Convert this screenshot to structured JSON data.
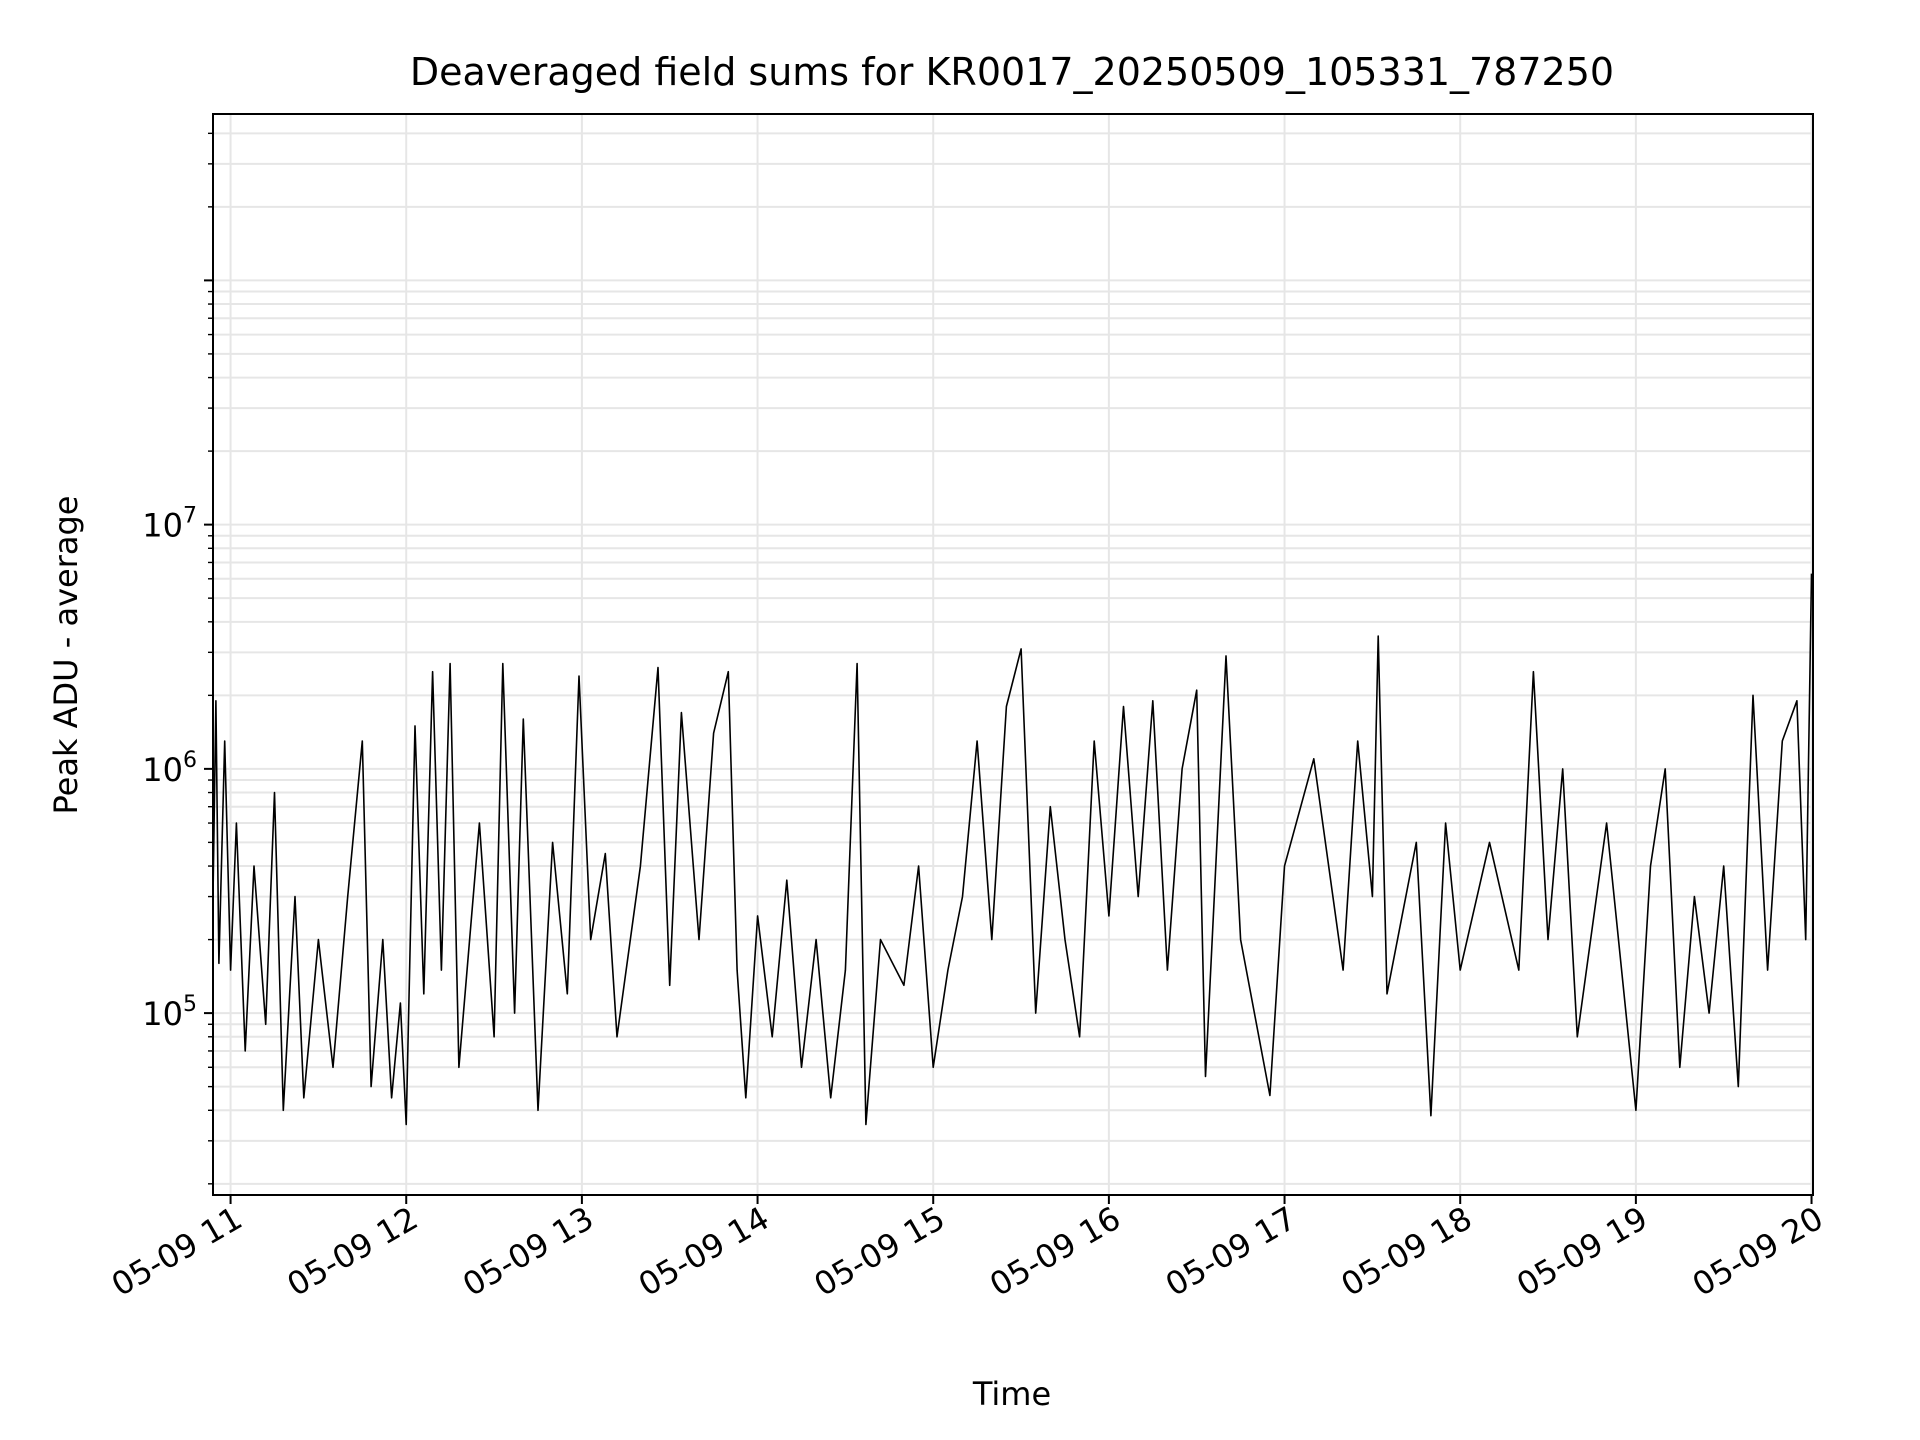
{
  "chart_data": {
    "type": "line",
    "title": "Deaveraged field sums for KR0017_20250509_105331_787250",
    "xlabel": "Time",
    "ylabel": "Peak ADU - average",
    "x_range": [
      "2025-05-09T10:54:00",
      "2025-05-09T20:00:30"
    ],
    "x_ticks": [
      {
        "time": "2025-05-09T11:00",
        "label": "05-09 11"
      },
      {
        "time": "2025-05-09T12:00",
        "label": "05-09 12"
      },
      {
        "time": "2025-05-09T13:00",
        "label": "05-09 13"
      },
      {
        "time": "2025-05-09T14:00",
        "label": "05-09 14"
      },
      {
        "time": "2025-05-09T15:00",
        "label": "05-09 15"
      },
      {
        "time": "2025-05-09T16:00",
        "label": "05-09 16"
      },
      {
        "time": "2025-05-09T17:00",
        "label": "05-09 17"
      },
      {
        "time": "2025-05-09T18:00",
        "label": "05-09 18"
      },
      {
        "time": "2025-05-09T19:00",
        "label": "05-09 19"
      },
      {
        "time": "2025-05-09T20:00",
        "label": "05-09 20"
      }
    ],
    "y_scale": "log",
    "ylim": [
      18000,
      480000000
    ],
    "y_ticks": [
      {
        "value": 100000,
        "base": "10",
        "exp": "5"
      },
      {
        "value": 1000000,
        "base": "10",
        "exp": "6"
      },
      {
        "value": 10000000,
        "base": "10",
        "exp": "7"
      }
    ],
    "grid": true,
    "line_color": "#000000",
    "grid_color": "#e6e6e6",
    "series": [
      {
        "points": [
          [
            "2025-05-09T10:54",
            300000
          ],
          [
            "2025-05-09T10:55",
            1900000
          ],
          [
            "2025-05-09T10:56",
            160000
          ],
          [
            "2025-05-09T10:58",
            1300000
          ],
          [
            "2025-05-09T11:00",
            150000
          ],
          [
            "2025-05-09T11:02",
            600000
          ],
          [
            "2025-05-09T11:05",
            70000
          ],
          [
            "2025-05-09T11:08",
            400000
          ],
          [
            "2025-05-09T11:12",
            90000
          ],
          [
            "2025-05-09T11:15",
            800000
          ],
          [
            "2025-05-09T11:18",
            40000
          ],
          [
            "2025-05-09T11:22",
            300000
          ],
          [
            "2025-05-09T11:25",
            45000
          ],
          [
            "2025-05-09T11:30",
            200000
          ],
          [
            "2025-05-09T11:35",
            60000
          ],
          [
            "2025-05-09T11:40",
            300000
          ],
          [
            "2025-05-09T11:45",
            1300000
          ],
          [
            "2025-05-09T11:48",
            50000
          ],
          [
            "2025-05-09T11:52",
            200000
          ],
          [
            "2025-05-09T11:55",
            45000
          ],
          [
            "2025-05-09T11:58",
            110000
          ],
          [
            "2025-05-09T12:00",
            35000
          ],
          [
            "2025-05-09T12:03",
            1500000
          ],
          [
            "2025-05-09T12:06",
            120000
          ],
          [
            "2025-05-09T12:09",
            2500000
          ],
          [
            "2025-05-09T12:12",
            150000
          ],
          [
            "2025-05-09T12:15",
            2700000
          ],
          [
            "2025-05-09T12:18",
            60000
          ],
          [
            "2025-05-09T12:25",
            600000
          ],
          [
            "2025-05-09T12:30",
            80000
          ],
          [
            "2025-05-09T12:33",
            2700000
          ],
          [
            "2025-05-09T12:37",
            100000
          ],
          [
            "2025-05-09T12:40",
            1600000
          ],
          [
            "2025-05-09T12:45",
            40000
          ],
          [
            "2025-05-09T12:50",
            500000
          ],
          [
            "2025-05-09T12:55",
            120000
          ],
          [
            "2025-05-09T12:59",
            2400000
          ],
          [
            "2025-05-09T13:03",
            200000
          ],
          [
            "2025-05-09T13:08",
            450000
          ],
          [
            "2025-05-09T13:12",
            80000
          ],
          [
            "2025-05-09T13:20",
            400000
          ],
          [
            "2025-05-09T13:26",
            2600000
          ],
          [
            "2025-05-09T13:30",
            130000
          ],
          [
            "2025-05-09T13:34",
            1700000
          ],
          [
            "2025-05-09T13:40",
            200000
          ],
          [
            "2025-05-09T13:45",
            1400000
          ],
          [
            "2025-05-09T13:50",
            2500000
          ],
          [
            "2025-05-09T13:53",
            150000
          ],
          [
            "2025-05-09T13:56",
            45000
          ],
          [
            "2025-05-09T14:00",
            250000
          ],
          [
            "2025-05-09T14:05",
            80000
          ],
          [
            "2025-05-09T14:10",
            350000
          ],
          [
            "2025-05-09T14:15",
            60000
          ],
          [
            "2025-05-09T14:20",
            200000
          ],
          [
            "2025-05-09T14:25",
            45000
          ],
          [
            "2025-05-09T14:30",
            150000
          ],
          [
            "2025-05-09T14:34",
            2700000
          ],
          [
            "2025-05-09T14:37",
            35000
          ],
          [
            "2025-05-09T14:42",
            200000
          ],
          [
            "2025-05-09T14:50",
            130000
          ],
          [
            "2025-05-09T14:55",
            400000
          ],
          [
            "2025-05-09T15:00",
            60000
          ],
          [
            "2025-05-09T15:05",
            150000
          ],
          [
            "2025-05-09T15:10",
            300000
          ],
          [
            "2025-05-09T15:15",
            1300000
          ],
          [
            "2025-05-09T15:20",
            200000
          ],
          [
            "2025-05-09T15:25",
            1800000
          ],
          [
            "2025-05-09T15:30",
            3100000
          ],
          [
            "2025-05-09T15:35",
            100000
          ],
          [
            "2025-05-09T15:40",
            700000
          ],
          [
            "2025-05-09T15:45",
            200000
          ],
          [
            "2025-05-09T15:50",
            80000
          ],
          [
            "2025-05-09T15:55",
            1300000
          ],
          [
            "2025-05-09T16:00",
            250000
          ],
          [
            "2025-05-09T16:05",
            1800000
          ],
          [
            "2025-05-09T16:10",
            300000
          ],
          [
            "2025-05-09T16:15",
            1900000
          ],
          [
            "2025-05-09T16:20",
            150000
          ],
          [
            "2025-05-09T16:25",
            1000000
          ],
          [
            "2025-05-09T16:30",
            2100000
          ],
          [
            "2025-05-09T16:33",
            55000
          ],
          [
            "2025-05-09T16:36",
            300000
          ],
          [
            "2025-05-09T16:40",
            2900000
          ],
          [
            "2025-05-09T16:45",
            200000
          ],
          [
            "2025-05-09T16:55",
            46000
          ],
          [
            "2025-05-09T17:00",
            400000
          ],
          [
            "2025-05-09T17:10",
            1100000
          ],
          [
            "2025-05-09T17:20",
            150000
          ],
          [
            "2025-05-09T17:25",
            1300000
          ],
          [
            "2025-05-09T17:30",
            300000
          ],
          [
            "2025-05-09T17:32",
            3500000
          ],
          [
            "2025-05-09T17:35",
            120000
          ],
          [
            "2025-05-09T17:45",
            500000
          ],
          [
            "2025-05-09T17:50",
            38000
          ],
          [
            "2025-05-09T17:55",
            600000
          ],
          [
            "2025-05-09T18:00",
            150000
          ],
          [
            "2025-05-09T18:10",
            500000
          ],
          [
            "2025-05-09T18:20",
            150000
          ],
          [
            "2025-05-09T18:25",
            2500000
          ],
          [
            "2025-05-09T18:30",
            200000
          ],
          [
            "2025-05-09T18:35",
            1000000
          ],
          [
            "2025-05-09T18:40",
            80000
          ],
          [
            "2025-05-09T18:50",
            600000
          ],
          [
            "2025-05-09T19:00",
            40000
          ],
          [
            "2025-05-09T19:05",
            400000
          ],
          [
            "2025-05-09T19:10",
            1000000
          ],
          [
            "2025-05-09T19:15",
            60000
          ],
          [
            "2025-05-09T19:20",
            300000
          ],
          [
            "2025-05-09T19:25",
            100000
          ],
          [
            "2025-05-09T19:30",
            400000
          ],
          [
            "2025-05-09T19:35",
            50000
          ],
          [
            "2025-05-09T19:40",
            2000000
          ],
          [
            "2025-05-09T19:45",
            150000
          ],
          [
            "2025-05-09T19:50",
            1300000
          ],
          [
            "2025-05-09T19:55",
            1900000
          ],
          [
            "2025-05-09T19:58",
            200000
          ],
          [
            "2025-05-09T20:00",
            6300000
          ]
        ]
      }
    ]
  }
}
